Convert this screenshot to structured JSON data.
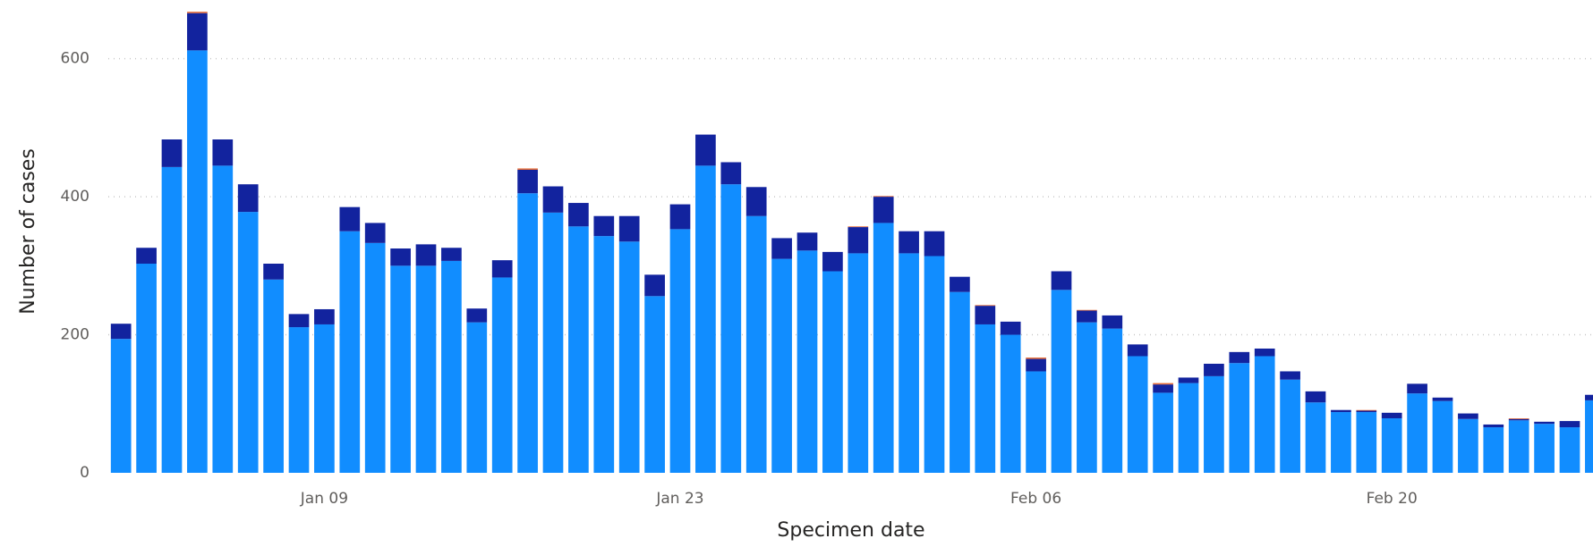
{
  "chart_data": {
    "type": "stacked_bar",
    "x_label": "Specimen date",
    "y_label": "Number of cases",
    "categories": [
      null,
      null,
      null,
      null,
      null,
      null,
      null,
      null,
      "Jan 09",
      null,
      null,
      null,
      null,
      null,
      null,
      null,
      null,
      null,
      null,
      null,
      null,
      null,
      "Jan 23",
      null,
      null,
      null,
      null,
      null,
      null,
      null,
      null,
      null,
      null,
      null,
      null,
      null,
      "Feb 06",
      null,
      null,
      null,
      null,
      null,
      null,
      null,
      null,
      null,
      null,
      null,
      null,
      null,
      "Feb 20",
      null,
      null,
      null,
      null,
      null,
      null,
      null,
      null
    ],
    "series": [
      {
        "color": "#118DFF",
        "values": [
          194,
          303,
          443,
          612,
          445,
          378,
          280,
          211,
          215,
          350,
          333,
          300,
          300,
          307,
          218,
          283,
          405,
          377,
          357,
          343,
          335,
          256,
          353,
          445,
          418,
          372,
          310,
          322,
          292,
          318,
          362,
          318,
          314,
          262,
          215,
          200,
          147,
          265,
          218,
          209,
          169,
          116,
          130,
          140,
          159,
          169,
          135,
          102,
          88,
          88,
          79,
          115,
          104,
          78,
          66,
          76,
          71,
          66,
          105
        ]
      },
      {
        "color": "#12239E",
        "values": [
          22,
          23,
          40,
          54,
          38,
          40,
          23,
          19,
          22,
          35,
          29,
          25,
          31,
          19,
          20,
          25,
          34,
          38,
          34,
          29,
          37,
          31,
          36,
          45,
          32,
          42,
          30,
          26,
          28,
          38,
          38,
          32,
          36,
          22,
          27,
          19,
          18,
          27,
          17,
          19,
          17,
          12,
          8,
          18,
          16,
          11,
          12,
          16,
          3,
          2,
          8,
          14,
          5,
          8,
          4,
          2,
          3,
          9,
          8
        ]
      },
      {
        "color": "#E66C37",
        "values": [
          0,
          0,
          0,
          2,
          0,
          0,
          0,
          0,
          0,
          0,
          0,
          0,
          0,
          0,
          0,
          0,
          2,
          0,
          0,
          0,
          0,
          0,
          0,
          0,
          0,
          0,
          0,
          0,
          0,
          1,
          1,
          0,
          0,
          0,
          1,
          0,
          2,
          0,
          1,
          0,
          0,
          2,
          0,
          0,
          0,
          0,
          0,
          0,
          0,
          1,
          0,
          0,
          0,
          0,
          0,
          1,
          0,
          0,
          0
        ]
      }
    ],
    "ylim": [
      0,
      685
    ],
    "yticks": [
      0,
      200,
      400,
      600
    ],
    "grid": true
  }
}
